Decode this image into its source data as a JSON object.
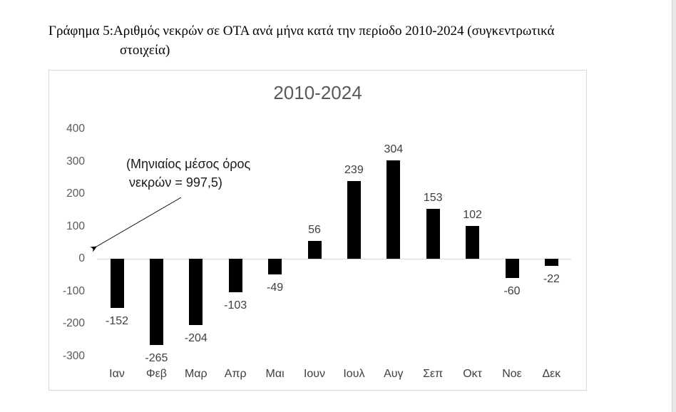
{
  "document": {
    "caption_line1": "Γράφημα 5:Αριθμός νεκρών σε ΟΤΑ ανά μήνα κατά την περίοδο 2010-2024 (συγκεντρωτικά",
    "caption_line2": "στοιχεία)"
  },
  "chart_data": {
    "type": "bar",
    "title": "2010-2024",
    "categories": [
      "Ιαν",
      "Φεβ",
      "Μαρ",
      "Απρ",
      "Μαι",
      "Ιουν",
      "Ιουλ",
      "Αυγ",
      "Σεπ",
      "Οκτ",
      "Νοε",
      "Δεκ"
    ],
    "values": [
      -152,
      -265,
      -204,
      -103,
      -49,
      56,
      239,
      304,
      153,
      102,
      -60,
      -22
    ],
    "y_ticks": [
      400,
      300,
      200,
      100,
      0,
      -100,
      -200,
      -300
    ],
    "ylim": [
      -300,
      400
    ],
    "xlabel": "",
    "ylabel": "",
    "grid": false,
    "legend": "none",
    "annotation": {
      "line1": "(Μηνιαίος μέσος όρος",
      "line2": "νεκρών = 997,5)"
    },
    "colors": {
      "bar": "#000000",
      "title": "#595959",
      "axis_tick_labels": "#595959",
      "category_labels": "#404040",
      "data_labels": "#404040",
      "axis_line": "#d9d9d9",
      "frame_border": "#d9d9d9"
    }
  }
}
